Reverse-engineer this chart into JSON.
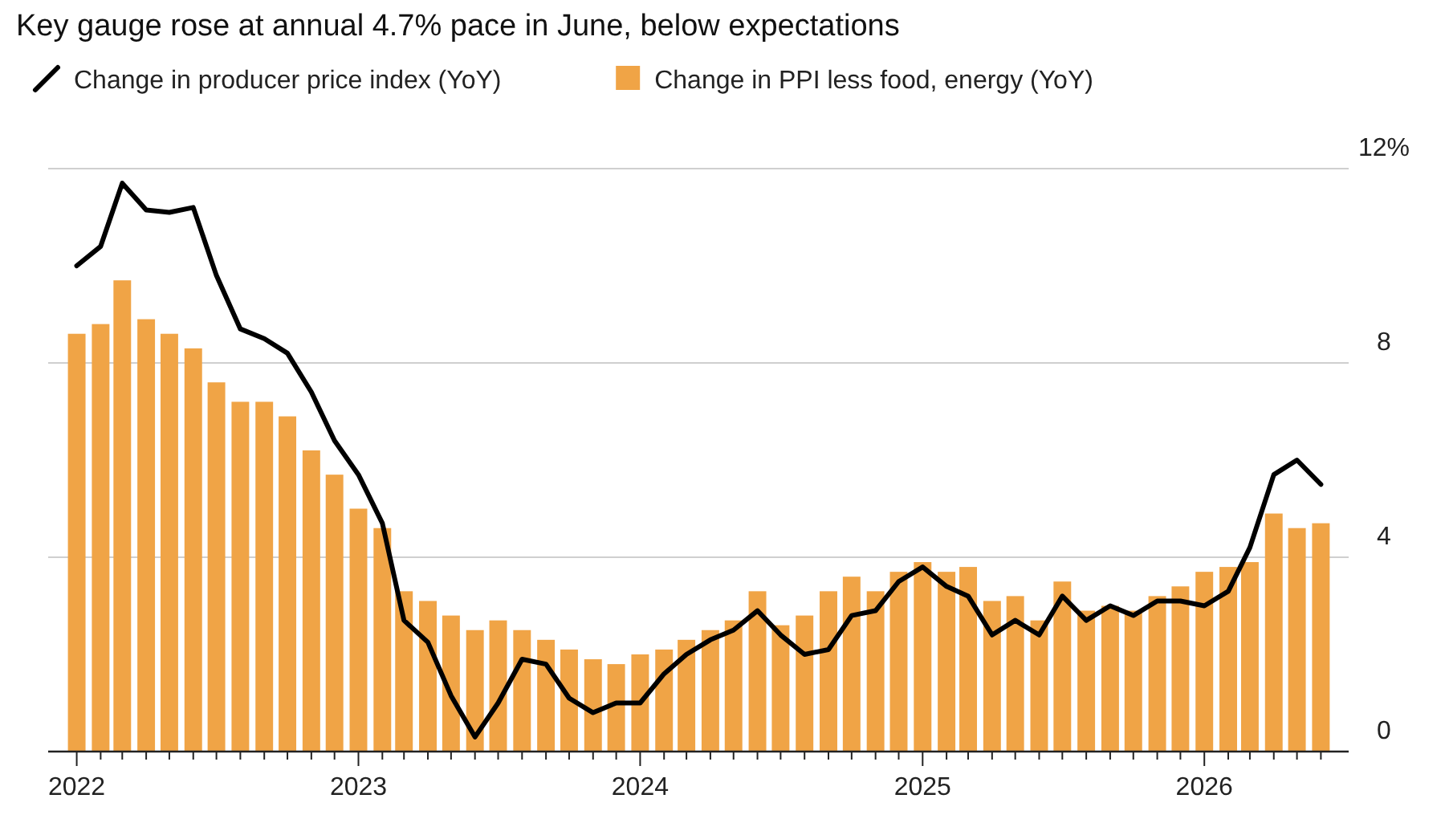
{
  "chart_data": {
    "type": "bar",
    "title": "Key gauge rose at annual 4.7% pace in June, below expectations",
    "x": [
      "2022-01",
      "2022-02",
      "2022-03",
      "2022-04",
      "2022-05",
      "2022-06",
      "2022-07",
      "2022-08",
      "2022-09",
      "2022-10",
      "2022-11",
      "2022-12",
      "2023-01",
      "2023-02",
      "2023-03",
      "2023-04",
      "2023-05",
      "2023-06",
      "2023-07",
      "2023-08",
      "2023-09",
      "2023-10",
      "2023-11",
      "2023-12",
      "2024-01",
      "2024-02",
      "2024-03",
      "2024-04",
      "2024-05",
      "2024-06",
      "2024-07",
      "2024-08",
      "2024-09",
      "2024-10",
      "2024-11",
      "2024-12",
      "2025-01",
      "2025-02",
      "2025-03",
      "2025-04",
      "2025-05",
      "2025-06",
      "2025-07",
      "2025-08",
      "2025-09",
      "2025-10",
      "2025-11",
      "2025-12",
      "2026-01",
      "2026-02",
      "2026-03",
      "2026-04",
      "2026-05",
      "2026-06"
    ],
    "series": [
      {
        "name": "Change in producer price index (YoY)",
        "type": "line",
        "color": "#000000",
        "values": [
          10.0,
          10.4,
          11.7,
          11.15,
          11.1,
          11.2,
          9.8,
          8.7,
          8.5,
          8.2,
          7.4,
          6.4,
          5.7,
          4.7,
          2.7,
          2.25,
          1.15,
          0.3,
          1.0,
          1.9,
          1.8,
          1.1,
          0.8,
          1.0,
          1.0,
          1.6,
          2.0,
          2.3,
          2.5,
          2.9,
          2.4,
          2.0,
          2.1,
          2.8,
          2.9,
          3.5,
          3.8,
          3.4,
          3.2,
          2.4,
          2.7,
          2.4,
          3.2,
          2.7,
          3.0,
          2.8,
          3.1,
          3.1,
          3.0,
          3.3,
          4.2,
          5.7,
          6.0,
          5.5
        ]
      },
      {
        "name": "Change in PPI less food, energy (YoY)",
        "color": "#f0a446",
        "values": [
          8.6,
          8.8,
          9.7,
          8.9,
          8.6,
          8.3,
          7.6,
          7.2,
          7.2,
          6.9,
          6.2,
          5.7,
          5.0,
          4.6,
          3.3,
          3.1,
          2.8,
          2.5,
          2.7,
          2.5,
          2.3,
          2.1,
          1.9,
          1.8,
          2.0,
          2.1,
          2.3,
          2.5,
          2.7,
          3.3,
          2.6,
          2.8,
          3.3,
          3.6,
          3.3,
          3.7,
          3.9,
          3.7,
          3.8,
          3.1,
          3.2,
          2.7,
          3.5,
          2.9,
          3.0,
          2.9,
          3.2,
          3.4,
          3.7,
          3.8,
          3.9,
          4.9,
          4.6,
          4.7
        ]
      }
    ],
    "xlim": [
      "2021-11-25",
      "2026-07-07"
    ],
    "xticks": [
      {
        "value": "2022",
        "label": "2022"
      },
      {
        "value": "2023",
        "label": "2023"
      },
      {
        "value": "2024",
        "label": "2024"
      },
      {
        "value": "2025",
        "label": "2025"
      },
      {
        "value": "2026",
        "label": "2026"
      }
    ],
    "ylim": [
      0,
      12
    ],
    "yticks": [
      0,
      4,
      8,
      {
        "value": 12,
        "label": "12%"
      }
    ],
    "grid": "y",
    "legend": "top left"
  }
}
